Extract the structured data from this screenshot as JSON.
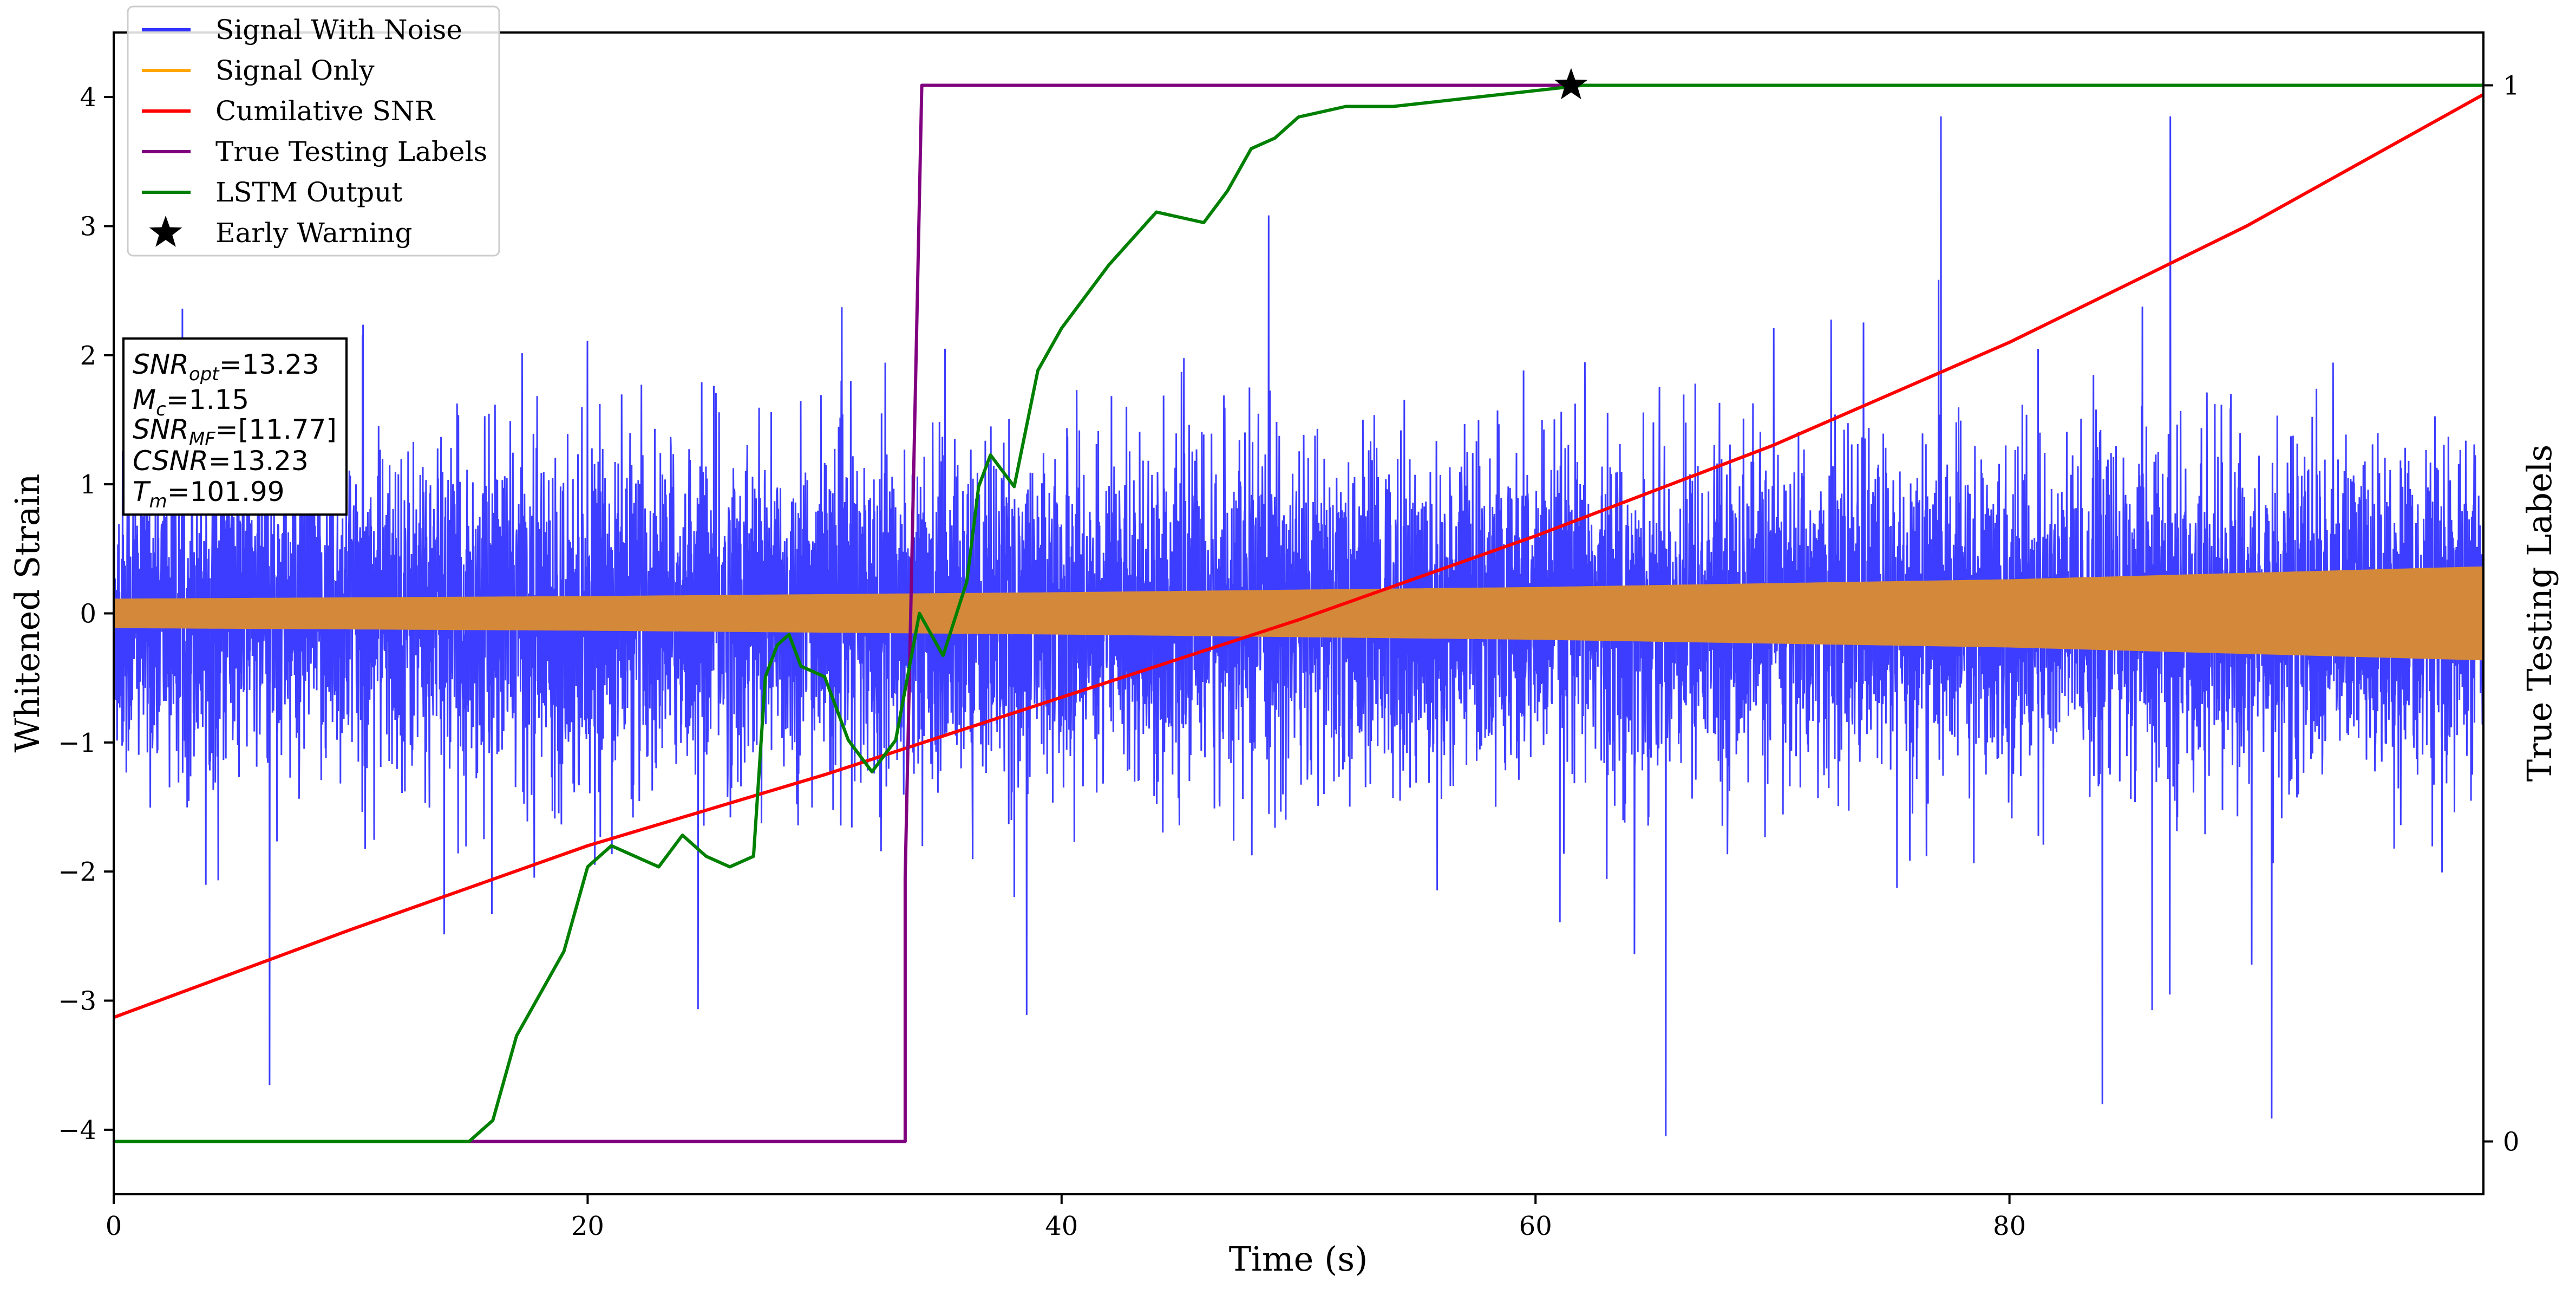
{
  "chart_data": {
    "type": "line",
    "xlabel": "Time (s)",
    "ylabel": "Whitened Strain",
    "y2label": "True Testing Labels",
    "xlim": [
      0,
      100
    ],
    "ylim": [
      -4.5,
      4.5
    ],
    "y2lim": [
      -0.05,
      1.05
    ],
    "xticks": [
      0,
      20,
      40,
      60,
      80
    ],
    "yticks": [
      -4,
      -3,
      -2,
      -1,
      0,
      1,
      2,
      3,
      4
    ],
    "y2ticks": [
      0,
      1
    ],
    "grid": false,
    "legend_position": "top-left",
    "legend": [
      {
        "label": "Signal With Noise",
        "color": "#3333ff",
        "marker": "line"
      },
      {
        "label": "Signal Only",
        "color": "#ffa500",
        "marker": "line"
      },
      {
        "label": "Cumilative SNR",
        "color": "#ff0000",
        "marker": "line"
      },
      {
        "label": "True Testing Labels",
        "color": "#800080",
        "marker": "line"
      },
      {
        "label": "LSTM Output",
        "color": "#008000",
        "marker": "line"
      },
      {
        "label": "Early Warning",
        "color": "#000000",
        "marker": "star"
      }
    ],
    "params": {
      "SNR_opt": "13.23",
      "M_c": "1.15",
      "SNR_MF": "[11.77]",
      "CSNR": "13.23",
      "T_m": "101.99"
    },
    "series": [
      {
        "name": "Signal With Noise",
        "axis": "left",
        "style": "noise",
        "color": "#3333ff",
        "x_range": [
          0,
          100
        ],
        "typical_band": [
          -1.5,
          1.5
        ],
        "peak_range": [
          -4.05,
          3.85
        ]
      },
      {
        "name": "Signal Only",
        "axis": "left",
        "style": "band",
        "color": "#d4883a",
        "x": [
          0,
          20,
          40,
          60,
          80,
          100
        ],
        "amplitude": [
          0.11,
          0.13,
          0.16,
          0.2,
          0.26,
          0.36
        ]
      },
      {
        "name": "Cumilative SNR",
        "axis": "left",
        "color": "#ff0000",
        "x": [
          0,
          10,
          20,
          30,
          40,
          50,
          60,
          70,
          80,
          90,
          100
        ],
        "y": [
          -3.13,
          -2.45,
          -1.8,
          -1.25,
          -0.65,
          -0.05,
          0.6,
          1.3,
          2.1,
          3.0,
          4.02
        ]
      },
      {
        "name": "True Testing Labels",
        "axis": "right",
        "color": "#800080",
        "x": [
          0,
          33.4,
          33.4,
          34.1,
          100
        ],
        "y": [
          0,
          0,
          0.25,
          1,
          1
        ]
      },
      {
        "name": "LSTM Output",
        "axis": "right",
        "color": "#008000",
        "x": [
          0,
          15,
          16,
          17,
          18,
          19,
          20,
          21,
          22,
          23,
          24,
          25,
          26,
          27,
          27.5,
          28,
          28.5,
          29,
          30,
          31,
          32,
          33,
          34,
          35,
          36,
          36.5,
          37,
          38,
          39,
          40,
          42,
          44,
          46,
          47,
          48,
          49,
          50,
          52,
          54,
          56,
          58,
          60,
          62,
          65,
          70,
          80,
          90,
          100
        ],
        "y": [
          0,
          0,
          0.02,
          0.1,
          0.14,
          0.18,
          0.26,
          0.28,
          0.27,
          0.26,
          0.29,
          0.27,
          0.26,
          0.27,
          0.44,
          0.47,
          0.48,
          0.45,
          0.44,
          0.38,
          0.35,
          0.38,
          0.5,
          0.46,
          0.53,
          0.62,
          0.65,
          0.62,
          0.73,
          0.77,
          0.83,
          0.88,
          0.87,
          0.9,
          0.94,
          0.95,
          0.97,
          0.98,
          0.98,
          0.985,
          0.99,
          0.995,
          1.0,
          1.0,
          1.0,
          1.0,
          1.0,
          1.0
        ]
      },
      {
        "name": "Early Warning",
        "axis": "right",
        "style": "marker",
        "color": "#000000",
        "x": [
          61.5
        ],
        "y": [
          1.0
        ]
      }
    ]
  }
}
